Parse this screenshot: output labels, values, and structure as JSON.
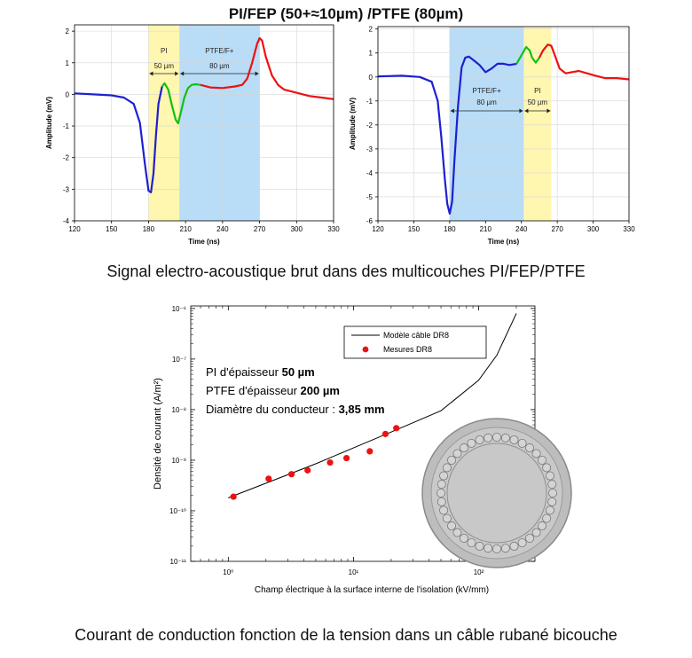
{
  "header_title": "PI/FEP (50+≈10µm)  /PTFE (80µm)",
  "caption_top": "Signal electro-acoustique brut dans des multicouches PI/FEP/PTFE",
  "caption_bottom": "Courant de conduction fonction de la tension dans un câble rubané bicouche",
  "colors": {
    "blue": "#1f1fd0",
    "green": "#12c012",
    "red": "#ee1111",
    "pi_band": "#fff6b0",
    "ptfe_band": "#b9dcf7",
    "fit_line": "#000000",
    "measure": "#ee1111"
  },
  "chart_data": [
    {
      "type": "line",
      "xlabel": "Time (ns)",
      "ylabel": "Amplitude (mV)",
      "xlim": [
        120,
        330
      ],
      "ylim": [
        -4,
        2.2
      ],
      "xticks": [
        120,
        150,
        180,
        210,
        240,
        270,
        300,
        330
      ],
      "yticks": [
        2,
        1,
        0,
        -1,
        -2,
        -3,
        -4
      ],
      "bands": [
        {
          "from": 180,
          "to": 205,
          "label": "PI",
          "thickness": "50 µm",
          "color": "#fff6b0"
        },
        {
          "from": 205,
          "to": 270,
          "label": "PTFE/F+",
          "thickness": "80 µm",
          "color": "#b9dcf7"
        }
      ],
      "series": [
        {
          "segment": "blue",
          "x": [
            120,
            135,
            150,
            160,
            168,
            173,
            177,
            180,
            182,
            184,
            186,
            188,
            191
          ],
          "y": [
            0.03,
            0.0,
            -0.03,
            -0.1,
            -0.3,
            -0.9,
            -2.2,
            -3.05,
            -3.1,
            -2.5,
            -1.3,
            -0.3,
            0.25
          ]
        },
        {
          "segment": "green",
          "x": [
            191,
            193,
            196,
            199,
            202,
            204,
            206,
            209,
            212,
            215,
            218,
            222
          ],
          "y": [
            0.25,
            0.35,
            0.15,
            -0.35,
            -0.8,
            -0.92,
            -0.6,
            -0.1,
            0.2,
            0.3,
            0.32,
            0.3
          ]
        },
        {
          "segment": "red",
          "x": [
            222,
            230,
            240,
            250,
            256,
            260,
            264,
            268,
            270,
            272,
            275,
            280,
            285,
            290,
            300,
            310,
            320,
            330
          ],
          "y": [
            0.3,
            0.22,
            0.2,
            0.25,
            0.3,
            0.5,
            1.0,
            1.6,
            1.78,
            1.7,
            1.2,
            0.6,
            0.3,
            0.15,
            0.05,
            -0.05,
            -0.1,
            -0.15
          ]
        }
      ]
    },
    {
      "type": "line",
      "xlabel": "Time (ns)",
      "ylabel": "Amplitude (mV)",
      "xlim": [
        120,
        330
      ],
      "ylim": [
        -6,
        2.1
      ],
      "xticks": [
        120,
        150,
        180,
        210,
        240,
        270,
        300,
        330
      ],
      "yticks": [
        2,
        1,
        0,
        -1,
        -2,
        -3,
        -4,
        -5,
        -6
      ],
      "bands": [
        {
          "from": 180,
          "to": 242,
          "label": "PTFE/F+",
          "thickness": "80 µm",
          "color": "#b9dcf7"
        },
        {
          "from": 242,
          "to": 265,
          "label": "PI",
          "thickness": "50 µm",
          "color": "#fff6b0"
        }
      ],
      "series": [
        {
          "segment": "blue",
          "x": [
            120,
            140,
            155,
            165,
            170,
            173,
            176,
            178,
            180,
            182,
            184,
            187,
            190,
            193,
            196,
            200,
            205,
            210,
            215,
            220,
            225,
            230,
            236
          ],
          "y": [
            0.02,
            0.05,
            0.0,
            -0.2,
            -1.0,
            -2.5,
            -4.3,
            -5.3,
            -5.7,
            -5.2,
            -3.5,
            -1.2,
            0.4,
            0.8,
            0.85,
            0.7,
            0.5,
            0.2,
            0.35,
            0.55,
            0.55,
            0.5,
            0.55
          ]
        },
        {
          "segment": "green",
          "x": [
            236,
            240,
            244,
            247,
            249,
            252,
            255
          ],
          "y": [
            0.55,
            0.9,
            1.25,
            1.1,
            0.8,
            0.6,
            0.8
          ]
        },
        {
          "segment": "red",
          "x": [
            255,
            258,
            262,
            265,
            268,
            272,
            277,
            282,
            288,
            295,
            302,
            310,
            320,
            330
          ],
          "y": [
            0.8,
            1.1,
            1.35,
            1.3,
            0.9,
            0.35,
            0.15,
            0.2,
            0.25,
            0.15,
            0.05,
            -0.05,
            -0.05,
            -0.1
          ]
        }
      ]
    },
    {
      "type": "scatter",
      "xlabel": "Champ électrique à la surface interne de l'isolation (kV/mm)",
      "ylabel": "Densité de courant (A/m²)",
      "x_scale": "log",
      "y_scale": "log",
      "xticks": [
        "10⁰",
        "10¹",
        "10²"
      ],
      "yticks": [
        "10⁻⁶",
        "10⁻⁷",
        "10⁻⁸",
        "10⁻⁹",
        "10⁻¹⁰",
        "10⁻¹¹"
      ],
      "legend": {
        "position": "top-right",
        "line_label": "Modèle câble DR8",
        "points_label": "Mesures DR8"
      },
      "annotations": [
        {
          "text": "PI d'épaisseur ",
          "bold": "50 µm"
        },
        {
          "text": "PTFE d'épaisseur ",
          "bold": "200 µm"
        },
        {
          "text": "Diamètre du conducteur : ",
          "bold": "3,85 mm"
        }
      ],
      "model_curve": {
        "x": [
          1.0,
          2.0,
          5.0,
          10.0,
          20.0,
          50.0,
          100.0,
          140.0,
          200.0
        ],
        "y": [
          1.8e-10,
          3.5e-10,
          8.5e-10,
          1.75e-09,
          3.6e-09,
          9.5e-09,
          3.8e-08,
          1.2e-07,
          8e-07
        ]
      },
      "measures": {
        "x": [
          1.1,
          2.1,
          3.2,
          4.3,
          6.5,
          8.8,
          13.5,
          18.0,
          22.0
        ],
        "y": [
          1.9e-10,
          4.3e-10,
          5.3e-10,
          6.3e-10,
          9e-10,
          1.1e-09,
          1.5e-09,
          3.3e-09,
          4.3e-09
        ]
      }
    }
  ]
}
